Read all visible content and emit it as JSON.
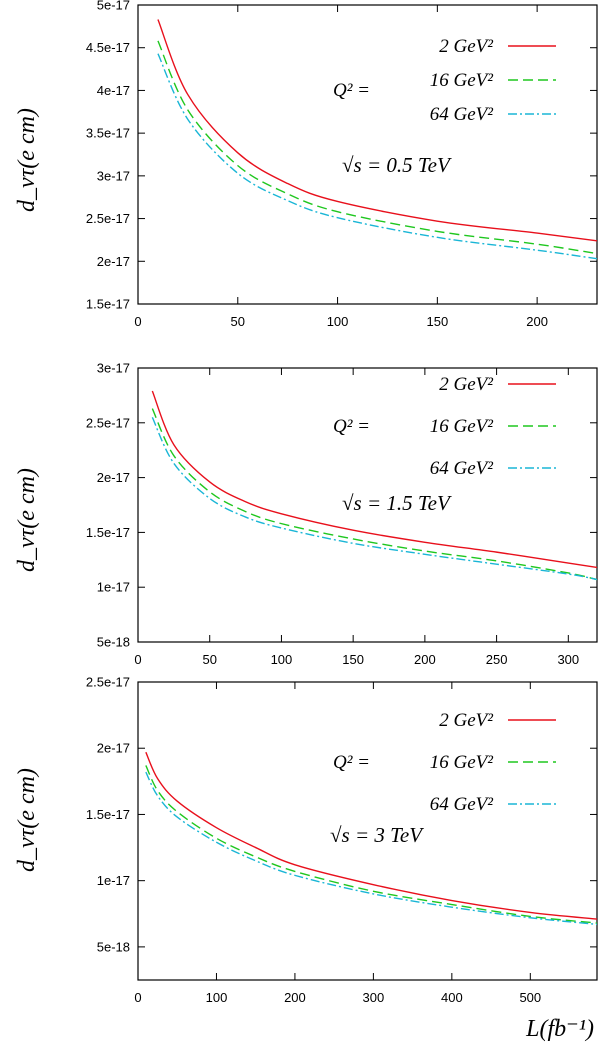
{
  "chart_data": [
    {
      "type": "line",
      "ylabel": "d_ντ(e cm)",
      "xlabel": "",
      "xlim": [
        0,
        230
      ],
      "ylim": [
        1.5e-17,
        5e-17
      ],
      "x_ticks": [
        0,
        50,
        100,
        150,
        200
      ],
      "x_tick_labels": [
        "0",
        "50",
        "100",
        "150",
        "200"
      ],
      "y_ticks": [
        1.5e-17,
        2e-17,
        2.5e-17,
        3e-17,
        3.5e-17,
        4e-17,
        4.5e-17,
        5e-17
      ],
      "y_tick_labels": [
        "1.5e-17",
        "2e-17",
        "2.5e-17",
        "3e-17",
        "3.5e-17",
        "4e-17",
        "4.5e-17",
        "5e-17"
      ],
      "legend_prefix": "Q² =",
      "annotation": "√s = 0.5 TeV",
      "series": [
        {
          "name": "2 GeV²",
          "color": "#e8101c",
          "dash": "solid",
          "x": [
            10,
            25,
            50,
            75,
            100,
            150,
            200,
            230
          ],
          "y": [
            4.83e-17,
            3.95e-17,
            3.27e-17,
            2.91e-17,
            2.7e-17,
            2.47e-17,
            2.33e-17,
            2.24e-17
          ]
        },
        {
          "name": "16 GeV²",
          "color": "#1fc71f",
          "dash": "long",
          "x": [
            10,
            25,
            50,
            75,
            100,
            150,
            200,
            230
          ],
          "y": [
            4.58e-17,
            3.77e-17,
            3.12e-17,
            2.79e-17,
            2.58e-17,
            2.35e-17,
            2.2e-17,
            2.09e-17
          ]
        },
        {
          "name": "64 GeV²",
          "color": "#1ab6d6",
          "dash": "dashdot",
          "x": [
            10,
            25,
            50,
            75,
            100,
            150,
            200,
            230
          ],
          "y": [
            4.43e-17,
            3.66e-17,
            3.03e-17,
            2.71e-17,
            2.51e-17,
            2.28e-17,
            2.13e-17,
            2.03e-17
          ]
        }
      ]
    },
    {
      "type": "line",
      "ylabel": "d_ντ(e cm)",
      "xlabel": "",
      "xlim": [
        0,
        320
      ],
      "ylim": [
        5e-18,
        3e-17
      ],
      "x_ticks": [
        0,
        50,
        100,
        150,
        200,
        250,
        300
      ],
      "x_tick_labels": [
        "0",
        "50",
        "100",
        "150",
        "200",
        "250",
        "300"
      ],
      "y_ticks": [
        5e-18,
        1e-17,
        1.5e-17,
        2e-17,
        2.5e-17,
        3e-17
      ],
      "y_tick_labels": [
        "5e-18",
        "1e-17",
        "1.5e-17",
        "2e-17",
        "2.5e-17",
        "3e-17"
      ],
      "legend_prefix": "Q² =",
      "annotation": "√s = 1.5 TeV",
      "series": [
        {
          "name": "2 GeV²",
          "color": "#e8101c",
          "dash": "solid",
          "x": [
            10,
            25,
            50,
            75,
            100,
            150,
            200,
            250,
            300,
            320
          ],
          "y": [
            2.79e-17,
            2.3e-17,
            1.96e-17,
            1.78e-17,
            1.67e-17,
            1.52e-17,
            1.41e-17,
            1.32e-17,
            1.22e-17,
            1.18e-17
          ]
        },
        {
          "name": "16 GeV²",
          "color": "#1fc71f",
          "dash": "long",
          "x": [
            10,
            25,
            50,
            75,
            100,
            150,
            200,
            250,
            300,
            320
          ],
          "y": [
            2.63e-17,
            2.2e-17,
            1.87e-17,
            1.69e-17,
            1.58e-17,
            1.44e-17,
            1.33e-17,
            1.24e-17,
            1.13e-17,
            1.07e-17
          ]
        },
        {
          "name": "64 GeV²",
          "color": "#1ab6d6",
          "dash": "dashdot",
          "x": [
            10,
            25,
            50,
            75,
            100,
            150,
            200,
            250,
            300,
            320
          ],
          "y": [
            2.55e-17,
            2.13e-17,
            1.81e-17,
            1.64e-17,
            1.54e-17,
            1.4e-17,
            1.3e-17,
            1.21e-17,
            1.12e-17,
            1.07e-17
          ]
        }
      ]
    },
    {
      "type": "line",
      "ylabel": "d_ντ(e cm)",
      "xlabel": "L(fb⁻¹)",
      "xlim": [
        0,
        585
      ],
      "ylim": [
        2.5e-18,
        2.5e-17
      ],
      "x_ticks": [
        0,
        100,
        200,
        300,
        400,
        500
      ],
      "x_tick_labels": [
        "0",
        "100",
        "200",
        "300",
        "400",
        "500"
      ],
      "y_ticks": [
        5e-18,
        1e-17,
        1.5e-17,
        2e-17,
        2.5e-17
      ],
      "y_tick_labels": [
        "5e-18",
        "1e-17",
        "1.5e-17",
        "2e-17",
        "2.5e-17"
      ],
      "legend_prefix": "Q² =",
      "annotation": "√s = 3 TeV",
      "series": [
        {
          "name": "2 GeV²",
          "color": "#e8101c",
          "dash": "solid",
          "x": [
            10,
            25,
            50,
            100,
            150,
            200,
            300,
            400,
            500,
            585
          ],
          "y": [
            1.97e-17,
            1.77e-17,
            1.6e-17,
            1.4e-17,
            1.25e-17,
            1.12e-17,
            9.7e-18,
            8.5e-18,
            7.6e-18,
            7.1e-18
          ]
        },
        {
          "name": "16 GeV²",
          "color": "#1fc71f",
          "dash": "long",
          "x": [
            10,
            25,
            50,
            100,
            150,
            200,
            300,
            400,
            500,
            585
          ],
          "y": [
            1.87e-17,
            1.68e-17,
            1.52e-17,
            1.32e-17,
            1.18e-17,
            1.07e-17,
            9.2e-18,
            8.2e-18,
            7.3e-18,
            6.8e-18
          ]
        },
        {
          "name": "64 GeV²",
          "color": "#1ab6d6",
          "dash": "dashdot",
          "x": [
            10,
            25,
            50,
            100,
            150,
            200,
            300,
            400,
            500,
            585
          ],
          "y": [
            1.82e-17,
            1.64e-17,
            1.48e-17,
            1.29e-17,
            1.15e-17,
            1.04e-17,
            9e-18,
            8e-18,
            7.2e-18,
            6.7e-18
          ]
        }
      ]
    }
  ]
}
